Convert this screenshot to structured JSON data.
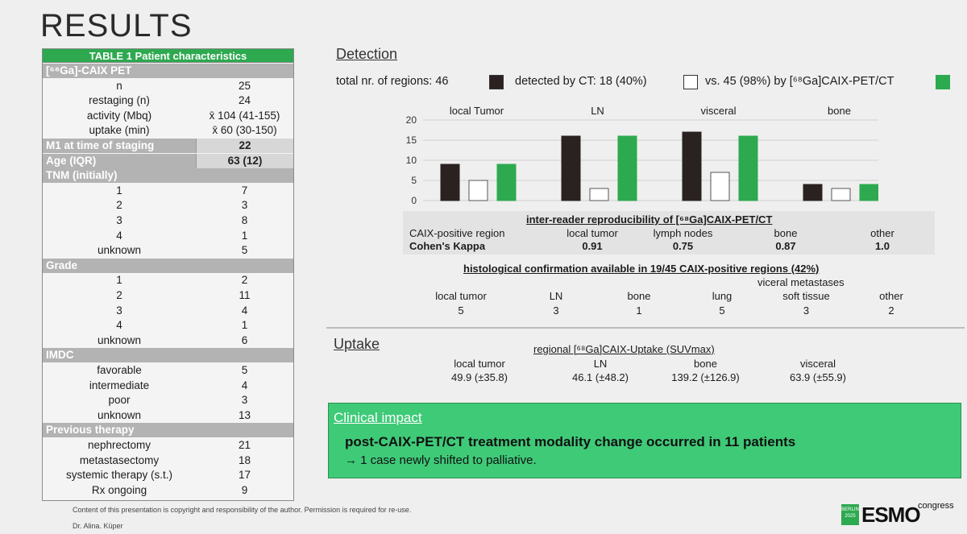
{
  "title": "RESULTS",
  "table": {
    "header": "TABLE 1 Patient characteristics",
    "rows": [
      {
        "label": "[⁶⁸Ga]-CAIX PET",
        "value": "",
        "kind": "sec"
      },
      {
        "label": "n",
        "value": "25"
      },
      {
        "label": "restaging (n)",
        "value": "24"
      },
      {
        "label": "activity (Mbq)",
        "value": "x̄ 104 (41-155)"
      },
      {
        "label": "uptake (min)",
        "value": "x̄ 60 (30-150)"
      },
      {
        "label": "M1 at time of staging",
        "value": "22",
        "kind": "secval"
      },
      {
        "label": "Age (IQR)",
        "value": "63 (12)",
        "kind": "secval"
      },
      {
        "label": "TNM (initially)",
        "value": "",
        "kind": "sec"
      },
      {
        "label": "1",
        "value": "7"
      },
      {
        "label": "2",
        "value": "3"
      },
      {
        "label": "3",
        "value": "8"
      },
      {
        "label": "4",
        "value": "1"
      },
      {
        "label": "unknown",
        "value": "5"
      },
      {
        "label": "Grade",
        "value": "",
        "kind": "sec"
      },
      {
        "label": "1",
        "value": "2"
      },
      {
        "label": "2",
        "value": "11"
      },
      {
        "label": "3",
        "value": "4"
      },
      {
        "label": "4",
        "value": "1"
      },
      {
        "label": "unknown",
        "value": "6"
      },
      {
        "label": "IMDC",
        "value": "",
        "kind": "sec"
      },
      {
        "label": "favorable",
        "value": "5"
      },
      {
        "label": "intermediate",
        "value": "4"
      },
      {
        "label": "poor",
        "value": "3"
      },
      {
        "label": "unknown",
        "value": "13"
      },
      {
        "label": "Previous therapy",
        "value": "",
        "kind": "sec"
      },
      {
        "label": "nephrectomy",
        "value": "21"
      },
      {
        "label": "metastasectomy",
        "value": "18"
      },
      {
        "label": "systemic therapy (s.t.)",
        "value": "17"
      },
      {
        "label": "Rx ongoing",
        "value": "9"
      }
    ]
  },
  "detection": {
    "heading": "Detection",
    "legend_total": "total nr. of regions: 46",
    "legend_ct": "detected by CT: 18 (40%)",
    "legend_pet": "vs. 45 (98%) by [⁶⁸Ga]CAIX-PET/CT"
  },
  "colors": {
    "total": "#2a2220",
    "ct": "#ffffff",
    "pet": "#2da94f"
  },
  "chart_data": {
    "type": "bar",
    "categories": [
      "local Tumor",
      "LN",
      "visceral",
      "bone"
    ],
    "series": [
      {
        "name": "total nr. of regions",
        "values": [
          9,
          16,
          17,
          4
        ]
      },
      {
        "name": "detected by CT",
        "values": [
          5,
          3,
          7,
          3
        ]
      },
      {
        "name": "[⁶⁸Ga]CAIX-PET/CT",
        "values": [
          9,
          16,
          16,
          4
        ]
      }
    ],
    "ylim": [
      0,
      20
    ],
    "yticks": [
      "0",
      "5",
      "10",
      "15",
      "20"
    ],
    "grid": true
  },
  "reproducibility": {
    "title": "inter-reader reproducibility of [⁶⁸Ga]CAIX-PET/CT",
    "row1_label": "CAIX-positive region",
    "row2_label": "Cohen's Kappa",
    "cols": [
      {
        "region": "local tumor",
        "kappa": "0.91"
      },
      {
        "region": "lymph nodes",
        "kappa": "0.75"
      },
      {
        "region": "bone",
        "kappa": "0.87"
      },
      {
        "region": "other",
        "kappa": "1.0"
      }
    ]
  },
  "histology": {
    "title": "histological confirmation available in 19/45 CAIX-positive regions (42%)",
    "group_label": "viceral metastases",
    "cols": [
      {
        "label": "local tumor",
        "value": "5"
      },
      {
        "label": "LN",
        "value": "3"
      },
      {
        "label": "bone",
        "value": "1"
      },
      {
        "label": "lung",
        "value": "5"
      },
      {
        "label": "soft tissue",
        "value": "3"
      },
      {
        "label": "other",
        "value": "2"
      }
    ]
  },
  "uptake": {
    "heading": "Uptake",
    "title": "regional [⁶⁸Ga]CAIX-Uptake (SUVmax)",
    "cols": [
      {
        "label": "local tumor",
        "value": "49.9 (±35.8)"
      },
      {
        "label": "LN",
        "value": "46.1 (±48.2)"
      },
      {
        "label": "bone",
        "value": "139.2 (±126.9)"
      },
      {
        "label": "visceral",
        "value": "63.9 (±55.9)"
      }
    ]
  },
  "impact": {
    "title": "Clinical impact",
    "main": "post-CAIX-PET/CT treatment modality change occurred in 11 patients",
    "sub": "→ 1 case newly shifted to palliative."
  },
  "footer": {
    "copyright": "Content of this presentation is copyright and responsibility of the author. Permission is required for re-use.",
    "author": "Dr. Alina. Küper"
  },
  "logo": {
    "city": "BERLIN 2025",
    "name": "ESMO",
    "suffix": "congress"
  }
}
